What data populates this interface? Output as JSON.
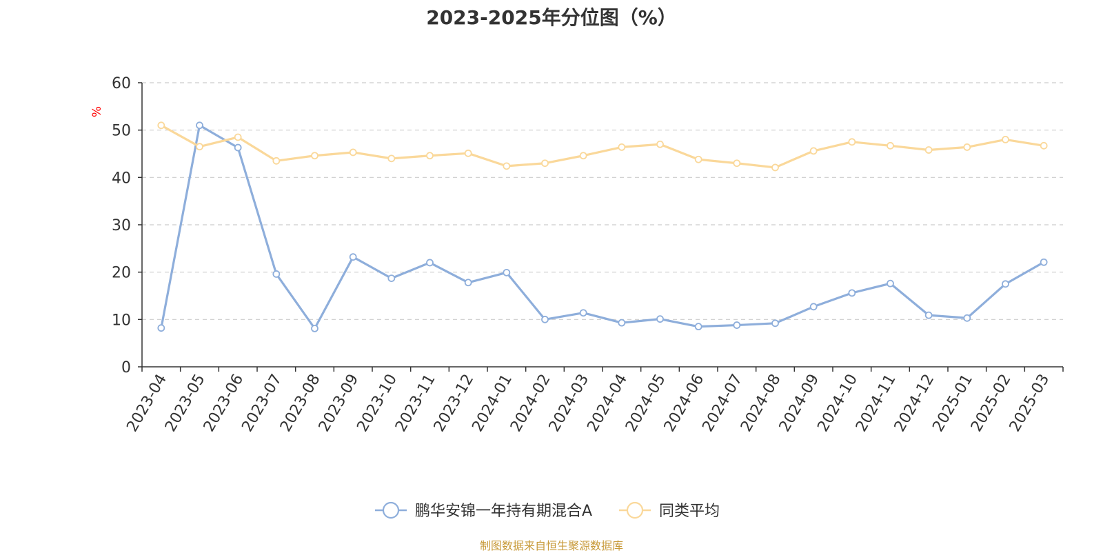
{
  "chart_data": {
    "type": "line",
    "title": "2023-2025年分位图（%）",
    "ylabel": "%",
    "ylim": [
      0,
      60
    ],
    "yticks": [
      0,
      10,
      20,
      30,
      40,
      50,
      60
    ],
    "grid": true,
    "legend_position": "bottom",
    "categories": [
      "2023-04",
      "2023-05",
      "2023-06",
      "2023-07",
      "2023-08",
      "2023-09",
      "2023-10",
      "2023-11",
      "2023-12",
      "2024-01",
      "2024-02",
      "2024-03",
      "2024-04",
      "2024-05",
      "2024-06",
      "2024-07",
      "2024-08",
      "2024-09",
      "2024-10",
      "2024-11",
      "2024-12",
      "2025-01",
      "2025-02",
      "2025-03"
    ],
    "series": [
      {
        "name": "鹏华安锦一年持有期混合A",
        "color": "#8eaedb",
        "values": [
          8.2,
          51.0,
          46.3,
          19.6,
          8.1,
          23.2,
          18.7,
          22.0,
          17.8,
          19.9,
          10.0,
          11.4,
          9.3,
          10.1,
          8.5,
          8.8,
          9.2,
          12.7,
          15.6,
          17.6,
          10.9,
          10.3,
          17.5,
          22.1
        ]
      },
      {
        "name": "同类平均",
        "color": "#fad89a",
        "values": [
          51.0,
          46.5,
          48.5,
          43.5,
          44.6,
          45.3,
          44.0,
          44.6,
          45.1,
          42.4,
          43.0,
          44.6,
          46.4,
          47.0,
          43.8,
          43.0,
          42.1,
          45.6,
          47.5,
          46.7,
          45.8,
          46.4,
          48.0,
          46.7
        ]
      }
    ],
    "source": "制图数据来自恒生聚源数据库"
  },
  "colors": {
    "title": "#333333",
    "axis": "#333333",
    "grid": "#cccccc",
    "ylabel": "#ff0000",
    "source": "#c89a3a"
  }
}
